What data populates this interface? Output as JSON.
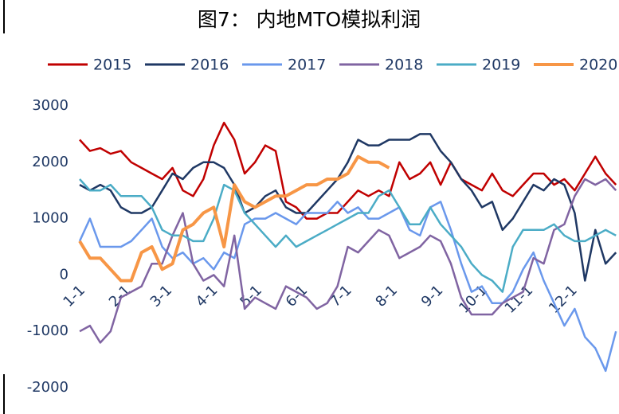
{
  "chart_data": {
    "type": "line",
    "title": "图7： 内地MTO模拟利润",
    "x": [
      0,
      7,
      14,
      21,
      28,
      35,
      42,
      49,
      56,
      63,
      70,
      77,
      84,
      91,
      98,
      105,
      112,
      119,
      126,
      133,
      140,
      147,
      154,
      161,
      168,
      175,
      182,
      189,
      196,
      203,
      210,
      217,
      224,
      231,
      238,
      245,
      252,
      259,
      266,
      273,
      280,
      287,
      294,
      301,
      308,
      315,
      322,
      329,
      336,
      343,
      350,
      357,
      364
    ],
    "xlim": [
      0,
      365
    ],
    "xticks": [
      {
        "value": 0,
        "label": "1-1"
      },
      {
        "value": 31,
        "label": "2-1"
      },
      {
        "value": 59,
        "label": "3-1"
      },
      {
        "value": 90,
        "label": "4-1"
      },
      {
        "value": 120,
        "label": "5-1"
      },
      {
        "value": 151,
        "label": "6-1"
      },
      {
        "value": 181,
        "label": "7-1"
      },
      {
        "value": 212,
        "label": "8-1"
      },
      {
        "value": 243,
        "label": "9-1"
      },
      {
        "value": 273,
        "label": "10-1"
      },
      {
        "value": 304,
        "label": "11-1"
      },
      {
        "value": 334,
        "label": "12-1"
      }
    ],
    "ylim": [
      -2000,
      3000
    ],
    "yticks": [
      -2000,
      -1000,
      0,
      1000,
      2000,
      3000
    ],
    "series": [
      {
        "name": "2015",
        "color": "#c00000",
        "values": [
          2400,
          2200,
          2250,
          2150,
          2200,
          2000,
          1900,
          1800,
          1700,
          1900,
          1500,
          1400,
          1700,
          2300,
          2700,
          2400,
          1800,
          2000,
          2300,
          2200,
          1300,
          1200,
          1000,
          1000,
          1100,
          1100,
          1300,
          1500,
          1400,
          1500,
          1400,
          2000,
          1700,
          1800,
          2000,
          1600,
          2000,
          1700,
          1600,
          1500,
          1800,
          1500,
          1400,
          1600,
          1800,
          1800,
          1600,
          1700,
          1500,
          1800,
          2100,
          1800,
          1600
        ]
      },
      {
        "name": "2016",
        "color": "#1f3864",
        "values": [
          1600,
          1500,
          1600,
          1500,
          1200,
          1100,
          1100,
          1200,
          1500,
          1800,
          1700,
          1900,
          2000,
          2000,
          1900,
          1600,
          1100,
          1200,
          1400,
          1500,
          1200,
          1100,
          1100,
          1300,
          1500,
          1700,
          2000,
          2400,
          2300,
          2300,
          2400,
          2400,
          2400,
          2500,
          2500,
          2200,
          2000,
          1700,
          1500,
          1200,
          1300,
          800,
          1000,
          1300,
          1600,
          1500,
          1700,
          1600,
          1100,
          -100,
          800,
          200,
          400
        ]
      },
      {
        "name": "2017",
        "color": "#6a98ec",
        "values": [
          600,
          1000,
          500,
          500,
          500,
          600,
          800,
          1000,
          500,
          300,
          400,
          200,
          300,
          100,
          400,
          300,
          900,
          1000,
          1000,
          1100,
          1000,
          900,
          1100,
          1100,
          1100,
          1300,
          1100,
          1200,
          1000,
          1000,
          1100,
          1200,
          800,
          700,
          1200,
          1300,
          800,
          200,
          -300,
          -200,
          -500,
          -500,
          -300,
          100,
          400,
          -100,
          -500,
          -900,
          -600,
          -1100,
          -1300,
          -1700,
          -1000
        ]
      },
      {
        "name": "2018",
        "color": "#8064a2",
        "values": [
          -1000,
          -900,
          -1200,
          -1000,
          -400,
          -300,
          -200,
          200,
          200,
          700,
          1100,
          200,
          -100,
          0,
          -200,
          700,
          -600,
          -400,
          -500,
          -600,
          -200,
          -300,
          -400,
          -600,
          -500,
          -200,
          500,
          400,
          600,
          800,
          700,
          300,
          400,
          500,
          700,
          600,
          200,
          -400,
          -700,
          -700,
          -700,
          -500,
          -400,
          -300,
          300,
          200,
          800,
          900,
          1400,
          1700,
          1600,
          1700,
          1500
        ]
      },
      {
        "name": "2019",
        "color": "#4bacc6",
        "values": [
          1700,
          1500,
          1500,
          1600,
          1400,
          1400,
          1400,
          1200,
          800,
          700,
          700,
          600,
          600,
          1000,
          1600,
          1500,
          1100,
          900,
          700,
          500,
          700,
          500,
          600,
          700,
          800,
          900,
          1000,
          1100,
          1100,
          1400,
          1500,
          1200,
          900,
          900,
          1200,
          900,
          700,
          500,
          200,
          0,
          -100,
          -300,
          500,
          800,
          800,
          800,
          900,
          700,
          600,
          600,
          700,
          800,
          700
        ]
      },
      {
        "name": "2020",
        "color": "#f79646",
        "values": [
          600,
          300,
          300,
          100,
          -100,
          -100,
          400,
          500,
          100,
          200,
          800,
          900,
          1100,
          1200,
          500,
          1600,
          1300,
          1200,
          1300,
          1400,
          1400,
          1500,
          1600,
          1600,
          1700,
          1700,
          1800,
          2100,
          2000,
          2000,
          1900,
          null,
          null,
          null,
          null,
          null,
          null,
          null,
          null,
          null,
          null,
          null,
          null,
          null,
          null,
          null,
          null,
          null,
          null,
          null,
          null,
          null,
          null
        ]
      }
    ]
  }
}
